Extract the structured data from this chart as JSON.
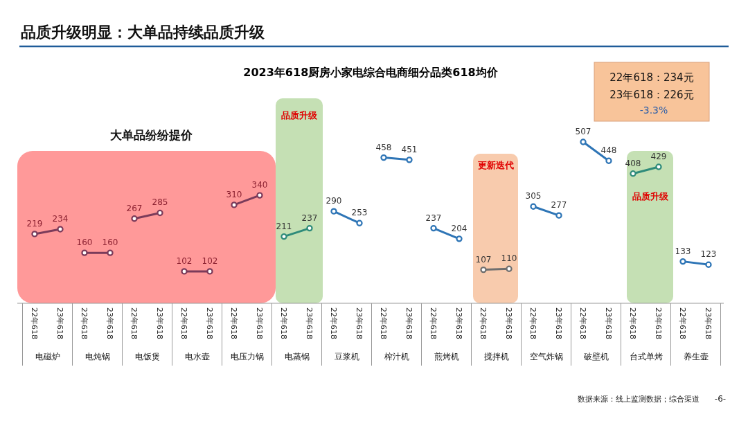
{
  "chart_data": {
    "type": "line",
    "title": "品质升级明显：大单品持续品质升级",
    "subtitle": "2023年618厨房小家电综合电商细分品类618均价",
    "categories": [
      "22年618",
      "23年618",
      "22年618",
      "23年618",
      "22年618",
      "23年618",
      "22年618",
      "23年618",
      "22年618",
      "23年618",
      "22年618",
      "23年618",
      "22年618",
      "23年618",
      "22年618",
      "23年618",
      "22年618",
      "23年618",
      "22年618",
      "23年618",
      "22年618",
      "23年618",
      "22年618",
      "23年618",
      "22年618",
      "23年618",
      "22年618",
      "23年618"
    ],
    "series": [
      {
        "color": "#7b3b5a",
        "values": [
          219,
          234,
          null,
          null,
          null,
          null,
          null,
          null,
          null,
          null,
          null,
          null,
          null,
          null,
          null,
          null,
          null,
          null,
          null,
          null,
          null,
          null,
          null,
          null,
          null,
          null,
          null,
          null
        ]
      },
      {
        "color": "#7b3b5a",
        "values": [
          null,
          null,
          160,
          160,
          null,
          null,
          null,
          null,
          null,
          null,
          null,
          null,
          null,
          null,
          null,
          null,
          null,
          null,
          null,
          null,
          null,
          null,
          null,
          null,
          null,
          null,
          null,
          null
        ]
      },
      {
        "color": "#7b3b5a",
        "values": [
          null,
          null,
          null,
          null,
          267,
          285,
          null,
          null,
          null,
          null,
          null,
          null,
          null,
          null,
          null,
          null,
          null,
          null,
          null,
          null,
          null,
          null,
          null,
          null,
          null,
          null,
          null,
          null
        ]
      },
      {
        "color": "#7b3b5a",
        "values": [
          null,
          null,
          null,
          null,
          null,
          null,
          102,
          102,
          null,
          null,
          null,
          null,
          null,
          null,
          null,
          null,
          null,
          null,
          null,
          null,
          null,
          null,
          null,
          null,
          null,
          null,
          null,
          null
        ]
      },
      {
        "color": "#7b3b5a",
        "values": [
          null,
          null,
          null,
          null,
          null,
          null,
          null,
          null,
          310,
          340,
          null,
          null,
          null,
          null,
          null,
          null,
          null,
          null,
          null,
          null,
          null,
          null,
          null,
          null,
          null,
          null,
          null,
          null
        ]
      },
      {
        "color": "#2e8b7a",
        "values": [
          null,
          null,
          null,
          null,
          null,
          null,
          null,
          null,
          null,
          null,
          211,
          237,
          null,
          null,
          null,
          null,
          null,
          null,
          null,
          null,
          null,
          null,
          null,
          null,
          null,
          null,
          null,
          null
        ]
      },
      {
        "color": "#2e75b6",
        "values": [
          null,
          null,
          null,
          null,
          null,
          null,
          null,
          null,
          null,
          null,
          null,
          null,
          290,
          253,
          null,
          null,
          null,
          null,
          null,
          null,
          null,
          null,
          null,
          null,
          null,
          null,
          null,
          null
        ]
      },
      {
        "color": "#2e75b6",
        "values": [
          null,
          null,
          null,
          null,
          null,
          null,
          null,
          null,
          null,
          null,
          null,
          null,
          null,
          null,
          458,
          451,
          null,
          null,
          null,
          null,
          null,
          null,
          null,
          null,
          null,
          null,
          null,
          null
        ]
      },
      {
        "color": "#2e75b6",
        "values": [
          null,
          null,
          null,
          null,
          null,
          null,
          null,
          null,
          null,
          null,
          null,
          null,
          null,
          null,
          null,
          null,
          237,
          204,
          null,
          null,
          null,
          null,
          null,
          null,
          null,
          null,
          null,
          null
        ]
      },
      {
        "color": "#6f6f6f",
        "values": [
          null,
          null,
          null,
          null,
          null,
          null,
          null,
          null,
          null,
          null,
          null,
          null,
          null,
          null,
          null,
          null,
          null,
          null,
          107,
          110,
          null,
          null,
          null,
          null,
          null,
          null,
          null,
          null
        ]
      },
      {
        "color": "#2e75b6",
        "values": [
          null,
          null,
          null,
          null,
          null,
          null,
          null,
          null,
          null,
          null,
          null,
          null,
          null,
          null,
          null,
          null,
          null,
          null,
          null,
          null,
          305,
          277,
          null,
          null,
          null,
          null,
          null,
          null
        ]
      },
      {
        "color": "#2e75b6",
        "values": [
          null,
          null,
          null,
          null,
          null,
          null,
          null,
          null,
          null,
          null,
          null,
          null,
          null,
          null,
          null,
          null,
          null,
          null,
          null,
          null,
          null,
          null,
          507,
          448,
          null,
          null,
          null,
          null
        ]
      },
      {
        "color": "#2e8b7a",
        "values": [
          null,
          null,
          null,
          null,
          null,
          null,
          null,
          null,
          null,
          null,
          null,
          null,
          null,
          null,
          null,
          null,
          null,
          null,
          null,
          null,
          null,
          null,
          null,
          null,
          408,
          429,
          null,
          null
        ]
      },
      {
        "color": "#2e75b6",
        "values": [
          null,
          null,
          null,
          null,
          null,
          null,
          null,
          null,
          null,
          null,
          null,
          null,
          null,
          null,
          null,
          null,
          null,
          null,
          null,
          null,
          null,
          null,
          null,
          null,
          null,
          null,
          133,
          123
        ]
      }
    ],
    "tick_labels": "x",
    "data_labels": true,
    "marker": "circle",
    "annotations": [
      "大单品纷纷提价",
      "品质升级",
      "更新迭代",
      "品质升级",
      "22年618：234元",
      "23年618：226元",
      "-3.3%",
      "数据来源：线上监测数据；综合渠道",
      "-6-",
      "电磁炉",
      "电炖锅",
      "电饭煲",
      "电水壶",
      "电压力锅",
      "电蒸锅",
      "豆浆机",
      "榨汁机",
      "煎烤机",
      "搅拌机",
      "空气炸锅",
      "破壁机",
      "台式单烤",
      "养生壶"
    ]
  }
}
